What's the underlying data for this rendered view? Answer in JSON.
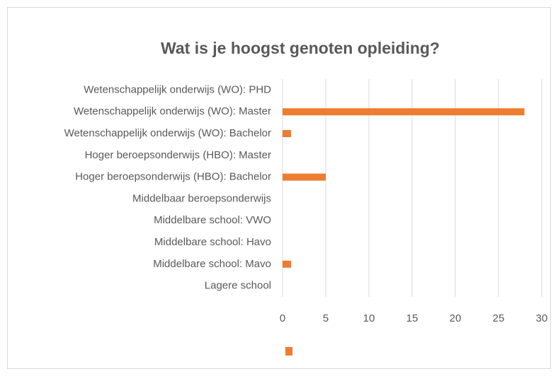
{
  "chart_data": {
    "type": "barh",
    "title": "Wat is je hoogst genoten opleiding?",
    "categories": [
      "Wetenschappelijk onderwijs (WO): PHD",
      "Wetenschappelijk onderwijs (WO): Master",
      "Wetenschappelijk onderwijs (WO): Bachelor",
      "Hoger beroepsonderwijs (HBO): Master",
      "Hoger beroepsonderwijs (HBO): Bachelor",
      "Middelbaar beroepsonderwijs",
      "Middelbare school: VWO",
      "Middelbare school: Havo",
      "Middelbare school: Mavo",
      "Lagere school"
    ],
    "values": [
      0,
      28,
      1,
      0,
      5,
      0,
      0,
      0,
      1,
      0
    ],
    "color": "#ed7d31",
    "xlim": [
      0,
      30
    ],
    "xticks": [
      0,
      5,
      10,
      15,
      20,
      25,
      30
    ],
    "grid": true
  }
}
